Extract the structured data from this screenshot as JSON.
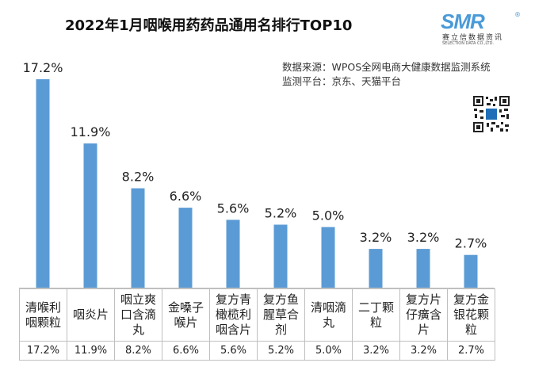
{
  "header": {
    "title": "2022年1月咽喉用药药品通用名排行TOP10"
  },
  "logo": {
    "mark": "SMR",
    "registered": "®",
    "name_cn": "赛立信数据资讯",
    "name_en": "SELECTION DATA CO.,LTD."
  },
  "source": {
    "line1": "数据来源：WPOS全网电商大健康数据监测系统",
    "line2": "监测平台：京东、天猫平台"
  },
  "colors": {
    "bar": "#5b9bd5",
    "logo": "#4a9ad8"
  },
  "chart_data": {
    "type": "bar",
    "title": "2022年1月咽喉用药药品通用名排行TOP10",
    "categories": [
      "清喉利咽颗粒",
      "咽炎片",
      "咽立爽口含滴丸",
      "金嗓子喉片",
      "复方青橄榄利咽含片",
      "复方鱼腥草合剂",
      "清咽滴丸",
      "二丁颗粒",
      "复方片仔癀含片",
      "复方金银花颗粒"
    ],
    "values": [
      17.2,
      11.9,
      8.2,
      6.6,
      5.6,
      5.2,
      5.0,
      3.2,
      3.2,
      2.7
    ],
    "labels": [
      "17.2%",
      "11.9%",
      "8.2%",
      "6.6%",
      "5.6%",
      "5.2%",
      "5.0%",
      "3.2%",
      "3.2%",
      "2.7%"
    ],
    "xlabel": "",
    "ylabel": "",
    "ylim": [
      0,
      17.2
    ],
    "grid": false,
    "legend": "none"
  }
}
